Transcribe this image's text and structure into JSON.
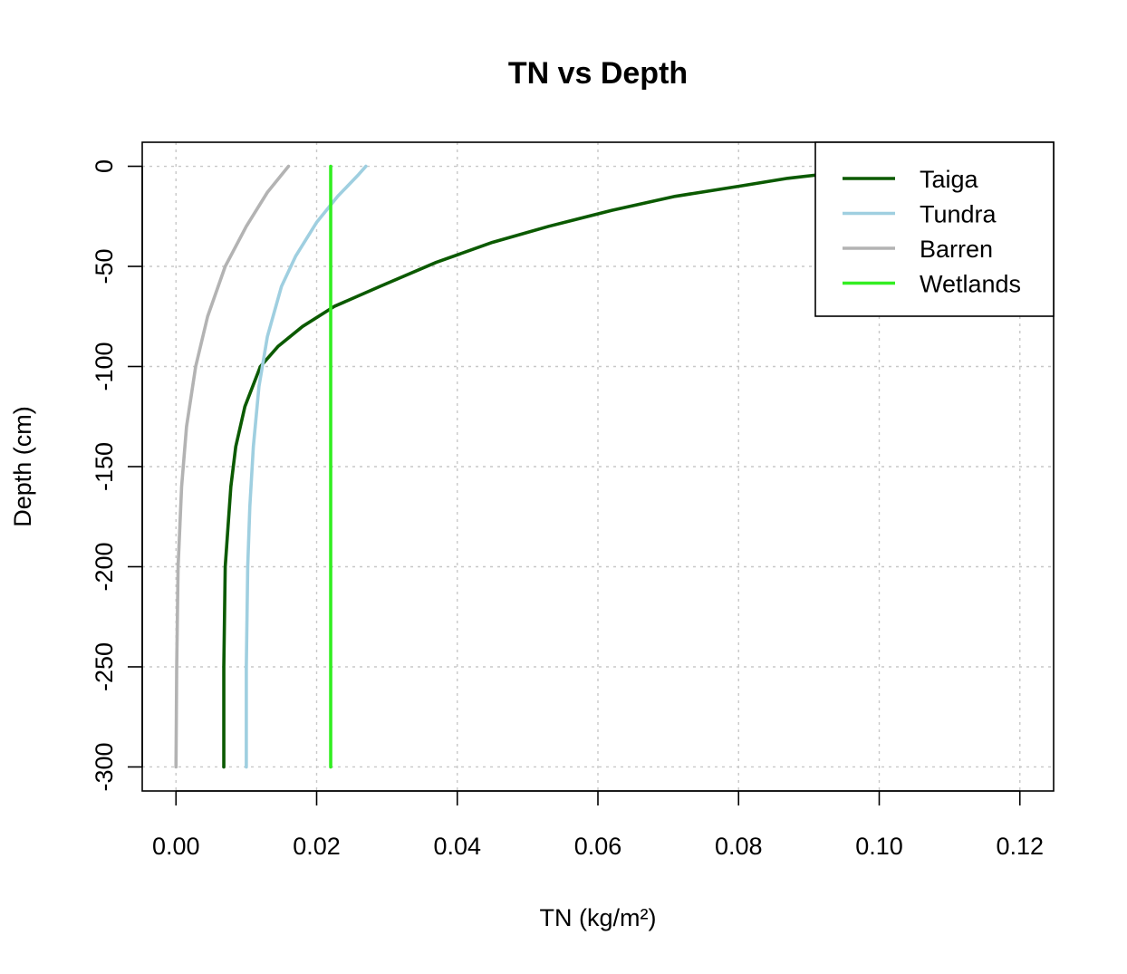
{
  "chart_data": {
    "type": "line",
    "title": "TN vs Depth",
    "xlabel": "TN (kg/m²)",
    "ylabel": "Depth (cm)",
    "xlim": [
      -0.0048,
      0.1248
    ],
    "ylim": [
      -312,
      12
    ],
    "xticks": [
      0,
      0.02,
      0.04,
      0.06,
      0.08,
      0.1,
      0.12
    ],
    "xtick_labels": [
      "0.00",
      "0.02",
      "0.04",
      "0.06",
      "0.08",
      "0.10",
      "0.12"
    ],
    "yticks": [
      0,
      -50,
      -100,
      -150,
      -200,
      -250,
      -300
    ],
    "ytick_labels": [
      "0",
      "-50",
      "-100",
      "-150",
      "-200",
      "-250",
      "-300"
    ],
    "grid": true,
    "legend_position": "top-right",
    "series": [
      {
        "name": "Taiga",
        "color": "#0b5a00",
        "points": [
          [
            0.0068,
            -300
          ],
          [
            0.0068,
            -250
          ],
          [
            0.007,
            -200
          ],
          [
            0.0074,
            -180
          ],
          [
            0.0078,
            -160
          ],
          [
            0.0085,
            -140
          ],
          [
            0.0098,
            -120
          ],
          [
            0.012,
            -100
          ],
          [
            0.0145,
            -90
          ],
          [
            0.018,
            -80
          ],
          [
            0.0225,
            -70
          ],
          [
            0.029,
            -60
          ],
          [
            0.037,
            -48
          ],
          [
            0.045,
            -38
          ],
          [
            0.053,
            -30
          ],
          [
            0.062,
            -22
          ],
          [
            0.071,
            -15
          ],
          [
            0.08,
            -10
          ],
          [
            0.087,
            -6
          ],
          [
            0.092,
            -4
          ],
          [
            0.096,
            -3
          ]
        ]
      },
      {
        "name": "Tundra",
        "color": "#9fcfe0",
        "points": [
          [
            0.01,
            -300
          ],
          [
            0.01,
            -250
          ],
          [
            0.0102,
            -200
          ],
          [
            0.0105,
            -170
          ],
          [
            0.011,
            -140
          ],
          [
            0.0118,
            -110
          ],
          [
            0.013,
            -85
          ],
          [
            0.015,
            -60
          ],
          [
            0.017,
            -45
          ],
          [
            0.02,
            -28
          ],
          [
            0.023,
            -15
          ],
          [
            0.026,
            -4
          ],
          [
            0.027,
            0
          ]
        ]
      },
      {
        "name": "Barren",
        "color": "#b3b3b3",
        "points": [
          [
            0.0,
            -300
          ],
          [
            0.0001,
            -250
          ],
          [
            0.0003,
            -200
          ],
          [
            0.0008,
            -160
          ],
          [
            0.0015,
            -130
          ],
          [
            0.0028,
            -100
          ],
          [
            0.0045,
            -75
          ],
          [
            0.007,
            -50
          ],
          [
            0.01,
            -30
          ],
          [
            0.013,
            -13
          ],
          [
            0.016,
            0
          ]
        ]
      },
      {
        "name": "Wetlands",
        "color": "#33ee22",
        "points": [
          [
            0.022,
            -300
          ],
          [
            0.022,
            0
          ]
        ]
      }
    ]
  }
}
